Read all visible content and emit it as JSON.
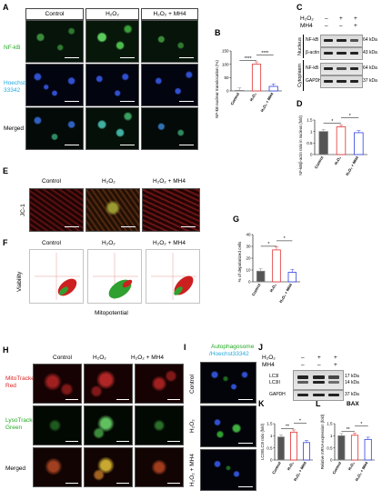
{
  "panels": {
    "A": "A",
    "B": "B",
    "C": "C",
    "D": "D",
    "E": "E",
    "F": "F",
    "G": "G",
    "H": "H",
    "I": "I",
    "J": "J",
    "K": "K",
    "L": "L"
  },
  "colors": {
    "green_label": "#22aa22",
    "blue_label": "#22aadd",
    "red_label": "#dd2222",
    "ctrl": "#888888",
    "h2o2": "#e03030",
    "mh4": "#3040e0"
  },
  "conditions": {
    "control": "Control",
    "h2o2": "H₂O₂",
    "h2o2_mh4": "H₂O₂ + MH4",
    "h2o2_mh4_short": "H₂O₂ + MH4"
  },
  "panelA": {
    "row1": "NF-kB",
    "row2a": "Hoechst",
    "row2b": "33342",
    "row3": "Merged"
  },
  "panelC": {
    "h2o2": "H₂O₂",
    "mh4": "MH4",
    "signs_h2o2": [
      "–",
      "+",
      "+"
    ],
    "signs_mh4": [
      "–",
      "–",
      "+"
    ],
    "bands": [
      "NF-kB",
      "β-actin",
      "NF-kB",
      "GAPDH"
    ],
    "kda": [
      "64 kDa",
      "43 kDa",
      "64 kDa",
      "37 kDa"
    ],
    "nucleus": "Nucleus",
    "cytoplasm": "Cytoplasm"
  },
  "panelE": {
    "row": "JC-1"
  },
  "panelF": {
    "ylabel": "Viability",
    "xlabel": "Mitopotential"
  },
  "panelH": {
    "row1a": "MitoTracker",
    "row1b": "Red",
    "row2a": "LysoTracker",
    "row2b": "Green",
    "row3": "Merged"
  },
  "panelI": {
    "title1": "Autophagosome",
    "title2": "/Hoechst33342",
    "rows": [
      "Control",
      "H₂O₂",
      "H₂O₂ + MH4"
    ]
  },
  "panelJ": {
    "h2o2": "H₂O₂",
    "mh4": "MH4",
    "signs_h2o2": [
      "–",
      "+",
      "+"
    ],
    "signs_mh4": [
      "–",
      "–",
      "+"
    ],
    "bands": [
      "LC3I",
      "LC3II",
      "GAPDH"
    ],
    "kda": [
      "17 kDa",
      "14 kDa",
      "37 kDa"
    ]
  },
  "panelL_title": "BAX",
  "chart_data": [
    {
      "panel": "B",
      "type": "bar",
      "categories": [
        "Control",
        "H₂O₂",
        "H₂O₂ + MH4"
      ],
      "values": [
        2,
        100,
        17
      ],
      "ylabel": "NF-kB nuclear translocation (%)",
      "ylim": [
        0,
        150
      ],
      "yticks": [
        0,
        50,
        100,
        150
      ],
      "significance": [
        "****",
        "****"
      ]
    },
    {
      "panel": "D",
      "type": "bar",
      "categories": [
        "Control",
        "H₂O₂",
        "H₂O₂ + MH4"
      ],
      "values": [
        1.0,
        1.2,
        0.95
      ],
      "ylabel": "NF-kB/β-actin ratio in nucleus (fold)",
      "ylim": [
        0,
        1.5
      ],
      "yticks": [
        0.0,
        0.5,
        1.0,
        1.5
      ],
      "significance": [
        "*",
        "*"
      ]
    },
    {
      "panel": "G",
      "type": "bar",
      "categories": [
        "Control",
        "H₂O₂",
        "H₂O₂ + MH4"
      ],
      "values": [
        9,
        27,
        8
      ],
      "ylabel": "% of depolarized cells",
      "ylim": [
        0,
        40
      ],
      "yticks": [
        0,
        10,
        20,
        30,
        40
      ],
      "significance": [
        "*",
        "*"
      ]
    },
    {
      "panel": "K",
      "type": "bar",
      "categories": [
        "Control",
        "H₂O₂",
        "H₂O₂ + MH4"
      ],
      "values": [
        0.95,
        1.15,
        0.72
      ],
      "ylabel": "LC3II/LC3I ratio (fold)",
      "ylim": [
        0,
        1.5
      ],
      "yticks": [
        0.0,
        0.5,
        1.0,
        1.5
      ],
      "significance": [
        "**",
        "*"
      ]
    },
    {
      "panel": "L",
      "type": "bar",
      "categories": [
        "Control",
        "H₂O₂",
        "H₂O₂ + MH4"
      ],
      "values": [
        1.0,
        1.02,
        0.85
      ],
      "ylabel": "Relative mRNA expression (fold)",
      "ylim": [
        0,
        1.5
      ],
      "yticks": [
        0.0,
        0.5,
        1.0,
        1.5
      ],
      "significance": [
        "**",
        "*"
      ]
    }
  ]
}
